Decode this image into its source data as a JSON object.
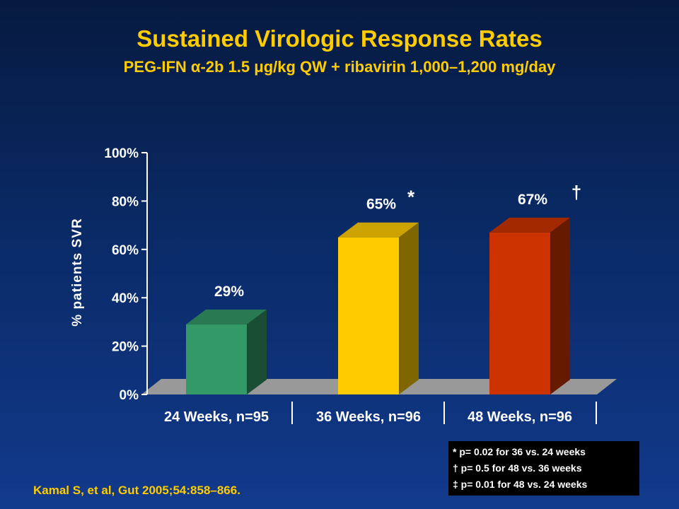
{
  "title": "Sustained Virologic Response Rates",
  "subtitle": "PEG-IFN α-2b 1.5 μg/kg QW + ribavirin 1,000–1,200 mg/day",
  "citation": "Kamal S, et al, Gut 2005;54:858–866.",
  "footnotes": [
    "* p= 0.02 for 36 vs. 24 weeks",
    "† p= 0.5 for 48 vs. 36 weeks",
    "‡ p= 0.01 for 48 vs. 24 weeks"
  ],
  "colors": {
    "title": "#ffcc00",
    "bar_24": "#339966",
    "bar_36": "#ffcc00",
    "bar_48": "#cc3300",
    "floor": "#999999"
  },
  "chart_data": {
    "type": "bar",
    "title": "",
    "xlabel": "",
    "ylabel": "% patients SVR",
    "ylim": [
      0,
      100
    ],
    "yticks": [
      "0%",
      "20%",
      "40%",
      "60%",
      "80%",
      "100%"
    ],
    "categories": [
      "24 Weeks, n=95",
      "36 Weeks, n=96",
      "48 Weeks, n=96"
    ],
    "values": [
      29,
      65,
      67
    ],
    "data_labels": [
      "29%",
      "65%",
      "67%"
    ],
    "markers": [
      "",
      "*",
      "†"
    ],
    "grid": false,
    "legend": "none"
  }
}
